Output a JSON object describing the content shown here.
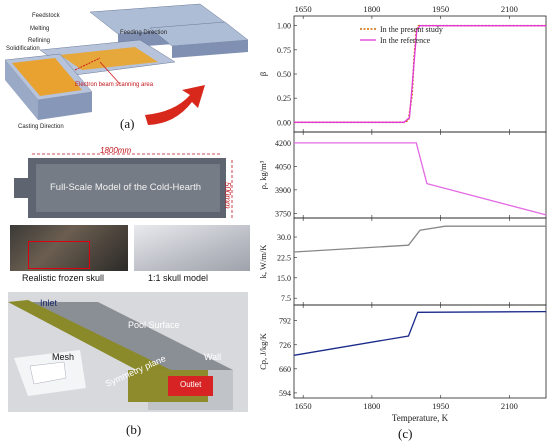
{
  "panel_a": {
    "caption": "(a)",
    "labels": {
      "feedstock": "Feedstock",
      "melting": "Melting",
      "refining": "Refining",
      "solidification": "Solidification",
      "feeding_direction": "Feeding Direction",
      "electron_beam": "Electron beam scanning area",
      "casting_direction": "Casting Direction"
    },
    "dimension_width": "1800mm",
    "dimension_height": "500mm",
    "model_title": "Full-Scale Model of the Cold-Hearth",
    "photo_caption_left": "Realistic frozen skull",
    "photo_caption_right": "1:1 skull model"
  },
  "panel_b": {
    "caption": "(b)",
    "labels": {
      "inlet": "Inlet",
      "pool_surface": "Pool Surface",
      "wall": "Wall",
      "mesh": "Mesh",
      "symmetry_plane": "Symmetry plane",
      "outlet": "Outlet"
    }
  },
  "panel_c": {
    "caption": "(c)",
    "xlabel": "Temperature, K",
    "x_ticks": [
      "1650",
      "1800",
      "1950",
      "2100"
    ],
    "legend": {
      "present": "In the present study",
      "reference": "In the reference"
    },
    "colors": {
      "present": "#d06a00",
      "reference": "#e23ad9",
      "density": "#e36ae3",
      "conductivity": "#888888",
      "cp": "#1a2a8a"
    }
  },
  "chart_data": [
    {
      "type": "line",
      "ylabel": "β",
      "x_ticks": [
        1650,
        1800,
        1950,
        2100
      ],
      "y_ticks": [
        "0.00",
        "0.25",
        "0.50",
        "0.75",
        "1.00"
      ],
      "xlim": [
        1630,
        2180
      ],
      "ylim": [
        -0.1,
        1.1
      ],
      "series": [
        {
          "name": "In the present study",
          "x": [
            1630,
            1870,
            1880,
            1888,
            1892,
            1897,
            1902,
            2180
          ],
          "y": [
            0,
            0,
            0.02,
            0.3,
            0.65,
            0.95,
            1,
            1
          ]
        },
        {
          "name": "In the reference",
          "x": [
            1630,
            1870,
            1882,
            1890,
            1898,
            1905,
            2180
          ],
          "y": [
            0,
            0,
            0.05,
            0.5,
            0.95,
            1,
            1
          ]
        }
      ]
    },
    {
      "type": "line",
      "ylabel": "ρ, kg/m³",
      "y_ticks": [
        "3750",
        "3900",
        "4050",
        "4200"
      ],
      "xlim": [
        1630,
        2180
      ],
      "ylim": [
        3720,
        4270
      ],
      "series": [
        {
          "x": [
            1630,
            1897,
            1920,
            2180
          ],
          "y": [
            4200,
            4200,
            3940,
            3740
          ]
        }
      ]
    },
    {
      "type": "line",
      "ylabel": "k, W/m/K",
      "y_ticks": [
        "7.5",
        "15.0",
        "22.5",
        "30.0"
      ],
      "xlim": [
        1630,
        2180
      ],
      "ylim": [
        5,
        37
      ],
      "series": [
        {
          "x": [
            1630,
            1880,
            1905,
            1960,
            2180
          ],
          "y": [
            24.5,
            27,
            32.5,
            34,
            34
          ]
        }
      ]
    },
    {
      "type": "line",
      "ylabel": "Cp, J/kg/K",
      "y_ticks": [
        "594",
        "660",
        "726",
        "792"
      ],
      "xlim": [
        1630,
        2180
      ],
      "ylim": [
        580,
        835
      ],
      "series": [
        {
          "x": [
            1630,
            1880,
            1900,
            2180
          ],
          "y": [
            697,
            750,
            815,
            817
          ]
        }
      ]
    }
  ]
}
